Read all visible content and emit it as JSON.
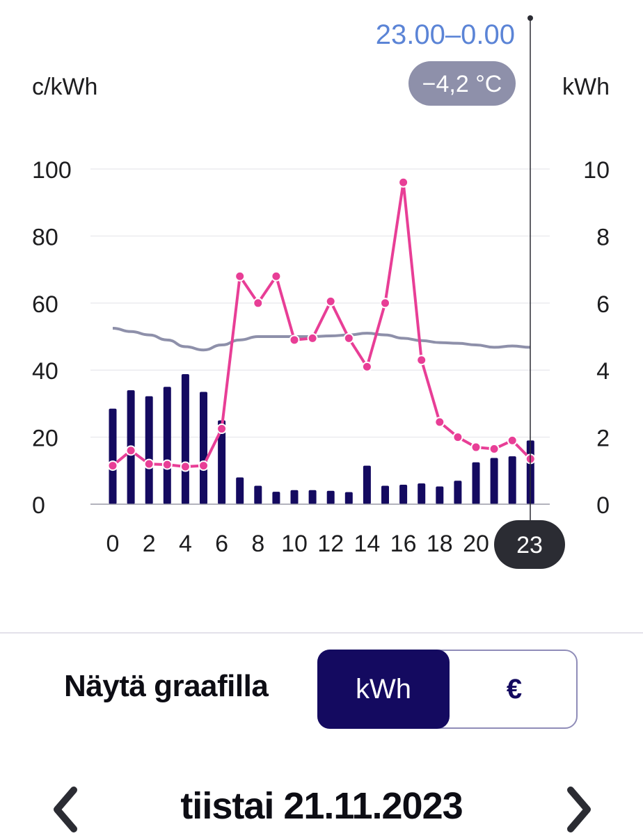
{
  "chart_data": {
    "type": "bar",
    "left_axis_unit": "c/kWh",
    "right_axis_unit": "kWh",
    "left_ylim": [
      0,
      100
    ],
    "right_ylim": [
      0,
      10
    ],
    "left_ticks": [
      "0",
      "20",
      "40",
      "60",
      "80",
      "100"
    ],
    "right_ticks": [
      "0",
      "2",
      "4",
      "6",
      "8",
      "10"
    ],
    "x_tick_labels": [
      "0",
      "2",
      "4",
      "6",
      "8",
      "10",
      "12",
      "14",
      "16",
      "18",
      "20"
    ],
    "hours": [
      0,
      1,
      2,
      3,
      4,
      5,
      6,
      7,
      8,
      9,
      10,
      11,
      12,
      13,
      14,
      15,
      16,
      17,
      18,
      19,
      20,
      21,
      22,
      23
    ],
    "selected_hour_label": "23",
    "selected_range": "23.00–0.00",
    "selected_temperature": "−4,2 °C",
    "grid": true,
    "series": [
      {
        "kind": "bar",
        "axis": "right",
        "color": "#140a60",
        "values": [
          2.85,
          3.4,
          3.22,
          3.5,
          3.88,
          3.35,
          2.5,
          0.8,
          0.55,
          0.37,
          0.42,
          0.42,
          0.4,
          0.36,
          1.15,
          0.55,
          0.58,
          0.62,
          0.53,
          0.7,
          1.25,
          1.38,
          1.43,
          1.9
        ]
      },
      {
        "kind": "line",
        "axis": "left",
        "color": "#e83e96",
        "markers": true,
        "values": [
          11.5,
          16,
          12,
          11.8,
          11.2,
          11.5,
          22.5,
          68,
          60,
          68,
          49,
          49.5,
          60.5,
          49.5,
          41,
          60,
          96,
          43,
          24.5,
          20,
          17,
          16.5,
          19,
          13.5
        ]
      },
      {
        "kind": "line",
        "axis": "left",
        "color": "#8e90aa",
        "markers": false,
        "values": [
          52.5,
          51.5,
          50.5,
          49,
          47,
          46,
          47.5,
          49,
          50,
          50,
          50,
          50,
          50.2,
          50.5,
          51,
          50.5,
          49.5,
          48.8,
          48.2,
          48,
          47.5,
          46.8,
          47.2,
          46.8
        ]
      }
    ]
  },
  "controls": {
    "show_label": "Näytä graafilla",
    "options": [
      {
        "label": "kWh",
        "selected": true
      },
      {
        "label": "€",
        "selected": false
      }
    ]
  },
  "date_nav": {
    "date": "tiistai 21.11.2023"
  },
  "colors": {
    "accent": "#140a60",
    "price_line": "#e83e96",
    "temperature_line": "#8e90aa",
    "range_text": "#5b84d6",
    "temp_badge": "#8e90aa",
    "selected_hour_badge": "#2b2c33"
  }
}
